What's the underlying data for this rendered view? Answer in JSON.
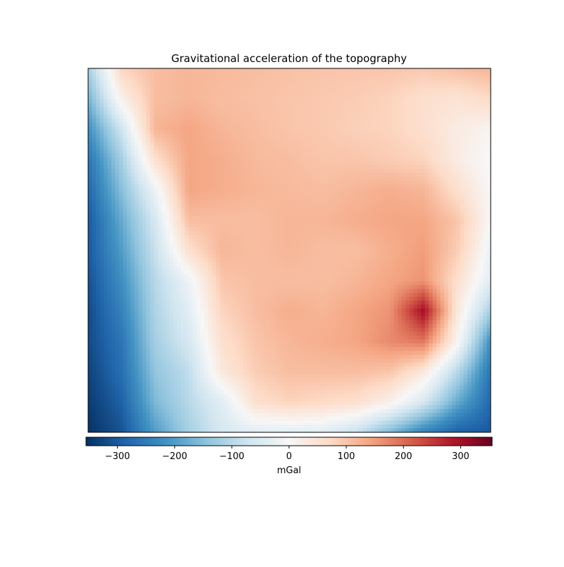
{
  "chart_data": {
    "type": "heatmap",
    "title": "Gravitational acceleration of the topography",
    "xlabel": "",
    "ylabel": "",
    "axes_ticks_visible": false,
    "grid": false,
    "colormap": "RdBu_r",
    "colormap_stops": [
      "#053061",
      "#2166ac",
      "#4393c3",
      "#92c5de",
      "#d1e5f0",
      "#f7f7f7",
      "#fddbc7",
      "#f4a582",
      "#d6604d",
      "#b2182b",
      "#67001f"
    ],
    "colorbar": {
      "orientation": "horizontal",
      "placement": "bottom",
      "label": "mGal",
      "vmin": -355,
      "vmax": 355,
      "ticks": [
        -300,
        -200,
        -100,
        0,
        100,
        200,
        300
      ],
      "tick_labels": [
        "−300",
        "−200",
        "−100",
        "0",
        "100",
        "200",
        "300"
      ]
    },
    "grid_shape": [
      13,
      13
    ],
    "values": [
      [
        -120,
        80,
        110,
        120,
        115,
        110,
        105,
        100,
        100,
        100,
        95,
        110,
        120
      ],
      [
        -170,
        20,
        110,
        120,
        110,
        105,
        100,
        95,
        90,
        80,
        60,
        50,
        70
      ],
      [
        -220,
        -70,
        120,
        140,
        120,
        110,
        100,
        95,
        85,
        80,
        60,
        30,
        10
      ],
      [
        -260,
        -120,
        60,
        140,
        130,
        115,
        110,
        100,
        100,
        90,
        80,
        30,
        -5
      ],
      [
        -280,
        -150,
        -20,
        140,
        130,
        120,
        115,
        110,
        120,
        130,
        120,
        60,
        0
      ],
      [
        -300,
        -180,
        -60,
        110,
        110,
        110,
        120,
        120,
        130,
        140,
        140,
        100,
        0
      ],
      [
        -300,
        -200,
        -80,
        60,
        120,
        110,
        120,
        110,
        110,
        130,
        150,
        90,
        -20
      ],
      [
        -310,
        -220,
        -100,
        -20,
        100,
        110,
        110,
        110,
        120,
        140,
        160,
        60,
        -40
      ],
      [
        -320,
        -240,
        -110,
        -40,
        80,
        110,
        130,
        120,
        140,
        160,
        300,
        40,
        -120
      ],
      [
        -320,
        -260,
        -120,
        -60,
        60,
        100,
        120,
        130,
        140,
        170,
        190,
        10,
        -220
      ],
      [
        -330,
        -270,
        -140,
        -90,
        40,
        90,
        110,
        110,
        110,
        100,
        40,
        -100,
        -260
      ],
      [
        -340,
        -290,
        -160,
        -100,
        -40,
        60,
        80,
        70,
        60,
        20,
        -60,
        -180,
        -280
      ],
      [
        -350,
        -310,
        -200,
        -120,
        -60,
        -40,
        -40,
        -40,
        -80,
        -160,
        -240,
        -290,
        -300
      ]
    ]
  }
}
